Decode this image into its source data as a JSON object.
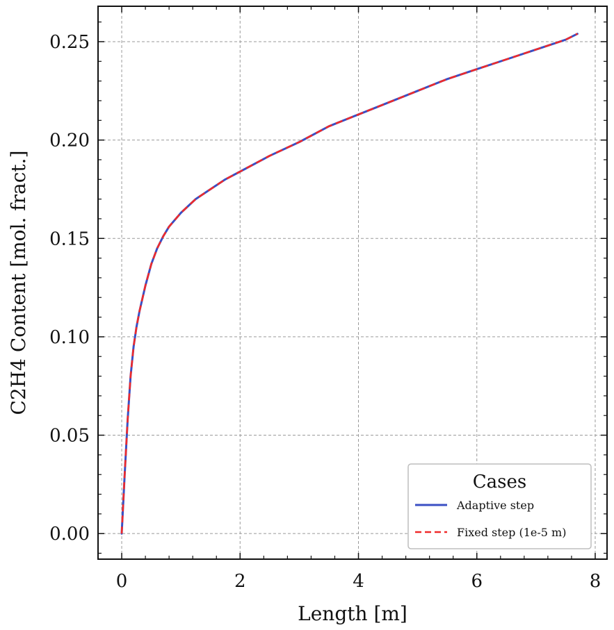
{
  "chart_data": {
    "type": "line",
    "xlabel": "Length [m]",
    "ylabel": "C2H4 Content [mol. fract.]",
    "xlim": [
      -0.4,
      8.2
    ],
    "ylim": [
      -0.013,
      0.268
    ],
    "xticks": [
      0,
      2,
      4,
      6,
      8
    ],
    "xtick_labels": [
      "0",
      "2",
      "4",
      "6",
      "8"
    ],
    "yticks": [
      0.0,
      0.05,
      0.1,
      0.15,
      0.2,
      0.25
    ],
    "ytick_labels": [
      "0.00",
      "0.05",
      "0.10",
      "0.15",
      "0.20",
      "0.25"
    ],
    "grid": true,
    "legend": {
      "title": "Cases",
      "placement": "lower-right"
    },
    "series": [
      {
        "name": "Adaptive step",
        "color": "#3a4fc4",
        "style": "solid",
        "x": [
          0,
          0.05,
          0.1,
          0.15,
          0.2,
          0.25,
          0.3,
          0.4,
          0.5,
          0.6,
          0.7,
          0.8,
          1.0,
          1.25,
          1.5,
          1.75,
          2.0,
          2.5,
          3.0,
          3.5,
          4.0,
          4.5,
          5.0,
          5.5,
          6.0,
          6.5,
          7.0,
          7.5,
          7.7
        ],
        "y": [
          0.0,
          0.03,
          0.058,
          0.08,
          0.095,
          0.105,
          0.113,
          0.126,
          0.137,
          0.145,
          0.151,
          0.156,
          0.163,
          0.17,
          0.175,
          0.18,
          0.184,
          0.192,
          0.199,
          0.207,
          0.213,
          0.219,
          0.225,
          0.231,
          0.236,
          0.241,
          0.246,
          0.251,
          0.254
        ]
      },
      {
        "name": "Fixed step (1e-5 m)",
        "color": "#ef2a2a",
        "style": "dashed",
        "x": [
          0,
          0.05,
          0.1,
          0.15,
          0.2,
          0.25,
          0.3,
          0.4,
          0.5,
          0.6,
          0.7,
          0.8,
          1.0,
          1.25,
          1.5,
          1.75,
          2.0,
          2.5,
          3.0,
          3.5,
          4.0,
          4.5,
          5.0,
          5.5,
          6.0,
          6.5,
          7.0,
          7.5,
          7.7
        ],
        "y": [
          0.0,
          0.03,
          0.058,
          0.08,
          0.095,
          0.105,
          0.113,
          0.126,
          0.137,
          0.145,
          0.151,
          0.156,
          0.163,
          0.17,
          0.175,
          0.18,
          0.184,
          0.192,
          0.199,
          0.207,
          0.213,
          0.219,
          0.225,
          0.231,
          0.236,
          0.241,
          0.246,
          0.251,
          0.254
        ]
      }
    ]
  }
}
